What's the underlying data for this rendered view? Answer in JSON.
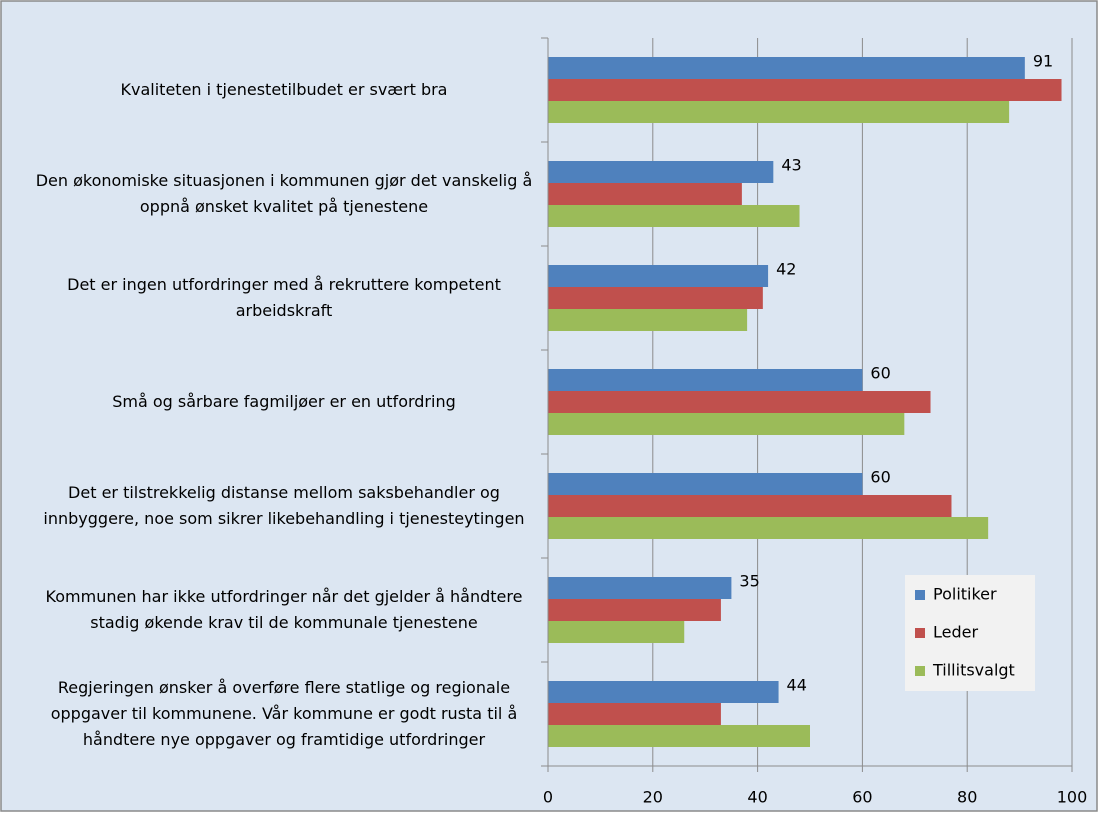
{
  "chart_data": {
    "type": "bar",
    "orientation": "horizontal",
    "categories": [
      "Kvaliteten i tjenestetilbudet er svært bra",
      "Den økonomiske situasjonen i kommunen gjør det vanskelig å oppnå ønsket kvalitet på tjenestene",
      "Det er ingen utfordringer med å rekruttere kompetent arbeidskraft",
      "Små og sårbare fagmiljøer er en utfordring",
      "Det er tilstrekkelig distanse mellom saksbehandler og innbyggere, noe som sikrer likebehandling i tjenesteytingen",
      "Kommunen har ikke utfordringer når det gjelder å håndtere stadig økende krav til de kommunale tjenestene",
      "Regjeringen ønsker å overføre flere statlige og regionale oppgaver til kommunene. Vår kommune er godt rusta til å håndtere nye oppgaver og framtidige utfordringer"
    ],
    "series": [
      {
        "name": "Politiker",
        "color": "#4f81bd",
        "values": [
          91,
          43,
          42,
          60,
          60,
          35,
          44
        ],
        "data_labels": true
      },
      {
        "name": "Leder",
        "color": "#c0504d",
        "values": [
          98,
          37,
          41,
          73,
          77,
          33,
          33
        ]
      },
      {
        "name": "Tillitsvalgt",
        "color": "#9bbb59",
        "values": [
          88,
          48,
          38,
          68,
          84,
          26,
          50
        ]
      }
    ],
    "xlim": [
      0,
      100
    ],
    "xticks": [
      0,
      20,
      40,
      60,
      80,
      100
    ],
    "grid": true,
    "legend_position": "lower right"
  }
}
